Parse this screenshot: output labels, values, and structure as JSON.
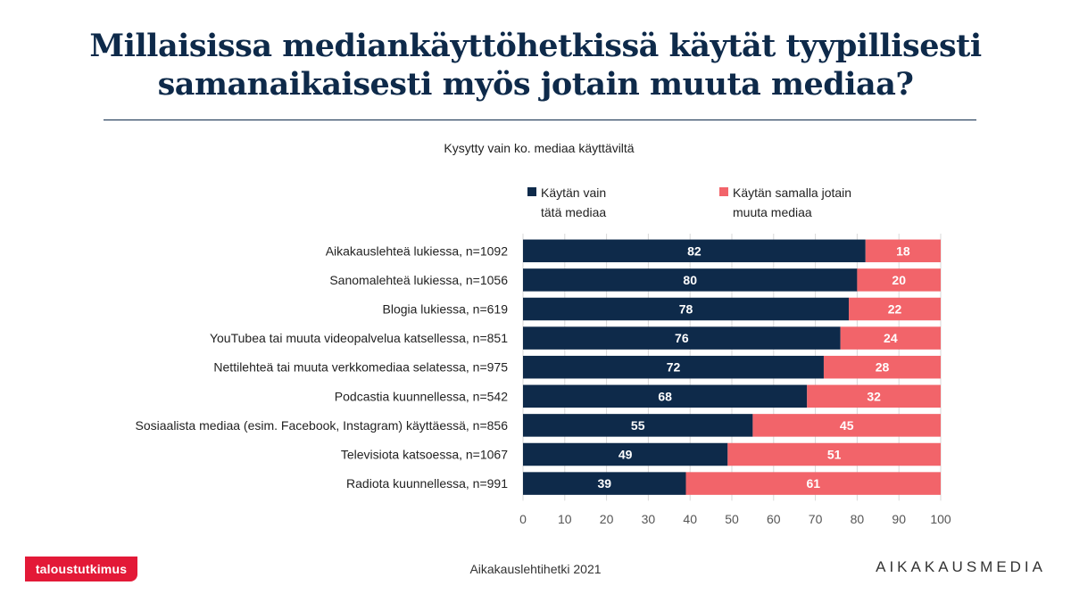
{
  "title": {
    "line1": "Millaisissa mediankäyttöhetkissä käytät tyypillisesti",
    "line2": "samanaikaisesti myös jotain muuta mediaa?"
  },
  "subtitle": "Kysytty vain ko. mediaa käyttäviltä",
  "legend": {
    "only": {
      "line1": "Käytän vain",
      "line2": "tätä mediaa",
      "color": "#0e2a4a"
    },
    "other": {
      "line1": "Käytän samalla jotain",
      "line2": "muuta mediaa",
      "color": "#f2646a"
    }
  },
  "chart_data": {
    "type": "bar",
    "orientation": "horizontal",
    "stacked": true,
    "categories": [
      "Aikakauslehteä lukiessa, n=1092",
      "Sanomalehteä lukiessa, n=1056",
      "Blogia lukiessa, n=619",
      "YouTubea tai muuta videopalvelua katsellessa, n=851",
      "Nettilehteä tai muuta verkkomediaa selatessa, n=975",
      "Podcastia kuunnellessa, n=542",
      "Sosiaalista mediaa (esim. Facebook, Instagram) käyttäessä, n=856",
      "Televisiota katsoessa, n=1067",
      "Radiota kuunnellessa, n=991"
    ],
    "series": [
      {
        "name": "Käytän vain tätä mediaa",
        "color": "#0e2a4a",
        "values": [
          82,
          80,
          78,
          76,
          72,
          68,
          55,
          49,
          39
        ]
      },
      {
        "name": "Käytän samalla jotain muuta mediaa",
        "color": "#f2646a",
        "values": [
          18,
          20,
          22,
          24,
          28,
          32,
          45,
          51,
          61
        ]
      }
    ],
    "xlim": [
      0,
      100
    ],
    "xticks": [
      0,
      10,
      20,
      30,
      40,
      50,
      60,
      70,
      80,
      90,
      100
    ],
    "grid": true,
    "legend_position": "top",
    "data_labels": true
  },
  "footer": {
    "source": "Aikakauslehtihetki 2021",
    "logo_left": "taloustutkimus",
    "logo_right": "AIKAKAUSMEDIA"
  }
}
